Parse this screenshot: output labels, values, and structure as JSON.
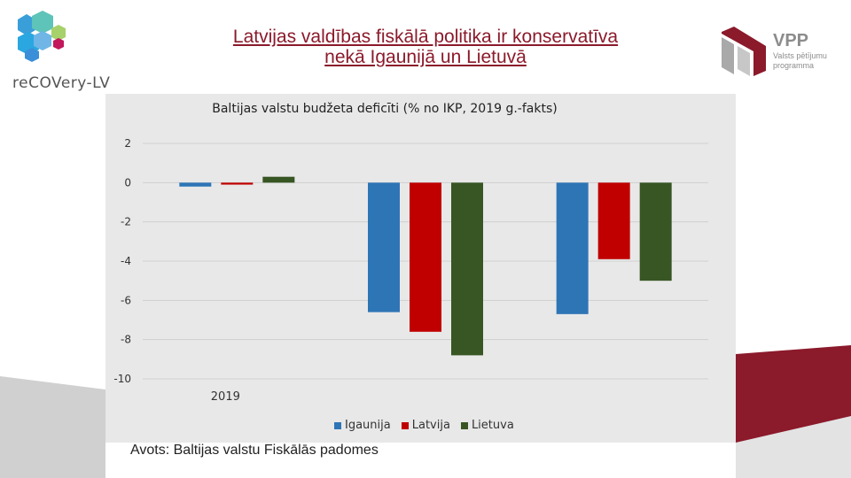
{
  "header": {
    "title_line1": "Latvijas valdības fiskālā politika ir konservatīva",
    "title_line2": "nekā Igaunijā un Lietuvā"
  },
  "logos": {
    "left_text": "reCOVery-LV",
    "right_text_main": "VPP",
    "right_text_sub1": "Valsts pētījumu",
    "right_text_sub2": "programma"
  },
  "source": "Avots: Baltijas valstu Fiskālās padomes",
  "colors": {
    "title": "#8b1a2b",
    "maroon": "#8b1a2b",
    "igaunija": "#2e75b6",
    "latvija": "#c00000",
    "lietuva": "#375623"
  },
  "chart_data": {
    "type": "bar",
    "title": "Baltijas valstu budžeta deficīti (% no IKP, 2019 g.-fakts)",
    "categories": [
      "2019",
      "",
      ""
    ],
    "series": [
      {
        "name": "Igaunija",
        "values": [
          -0.2,
          -6.6,
          -6.7
        ],
        "color": "#2e75b6"
      },
      {
        "name": "Latvija",
        "values": [
          -0.1,
          -7.6,
          -3.9
        ],
        "color": "#c00000"
      },
      {
        "name": "Lietuva",
        "values": [
          0.3,
          -8.8,
          -5.0
        ],
        "color": "#375623"
      }
    ],
    "yticks": [
      2,
      0,
      -2,
      -4,
      -6,
      -8,
      -10
    ],
    "ylim": [
      -10,
      2
    ],
    "grid": true,
    "legend": "bottom"
  }
}
